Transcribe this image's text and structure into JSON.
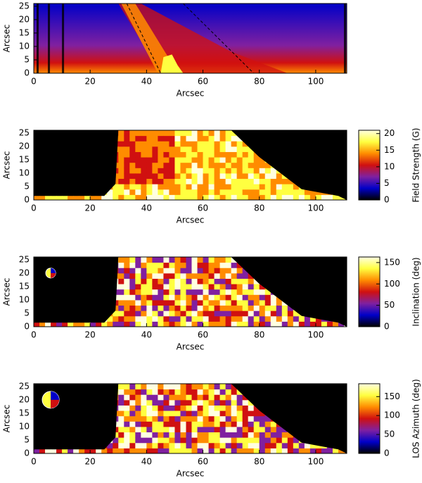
{
  "chart_data": [
    {
      "type": "heatmap",
      "xlabel": "Arcsec",
      "ylabel": "Arcsec",
      "xlim": [
        0,
        111
      ],
      "xticks": [
        0,
        20,
        40,
        60,
        80,
        100
      ],
      "ylim": [
        0,
        26
      ],
      "yticks": [
        0,
        5,
        10,
        15,
        20,
        25
      ],
      "colormap": [
        "#000000",
        "#0000c8",
        "#8020a0",
        "#d01010",
        "#ff8c00",
        "#ffff40",
        "#ffffe0"
      ]
    },
    {
      "type": "heatmap",
      "xlabel": "Arcsec",
      "ylabel": "Arcsec",
      "xlim": [
        0,
        111
      ],
      "xticks": [
        0,
        20,
        40,
        60,
        80,
        100
      ],
      "ylim": [
        0,
        26
      ],
      "yticks": [
        0,
        5,
        10,
        15,
        20,
        25
      ],
      "colormap": [
        "#000000",
        "#0000c8",
        "#8020a0",
        "#d01010",
        "#ff8c00",
        "#ffff40",
        "#ffffe0"
      ],
      "colorbar": {
        "label": "Field Strength (G)",
        "lim": [
          0,
          21
        ],
        "ticks": [
          0,
          5,
          10,
          15,
          20
        ]
      }
    },
    {
      "type": "heatmap",
      "xlabel": "Arcsec",
      "ylabel": "Arcsec",
      "xlim": [
        0,
        111
      ],
      "xticks": [
        0,
        20,
        40,
        60,
        80,
        100
      ],
      "ylim": [
        0,
        26
      ],
      "yticks": [
        0,
        5,
        10,
        15,
        20,
        25
      ],
      "colormap": [
        "#000000",
        "#0000c8",
        "#8020a0",
        "#d01010",
        "#ff8c00",
        "#ffff40",
        "#ffffe0"
      ],
      "colorbar": {
        "label": "Inclination (deg)",
        "lim": [
          0,
          163
        ],
        "ticks": [
          0,
          50,
          100,
          150
        ]
      }
    },
    {
      "type": "heatmap",
      "xlabel": "Arcsec",
      "ylabel": "Arcsec",
      "xlim": [
        0,
        111
      ],
      "xticks": [
        0,
        20,
        40,
        60,
        80,
        100
      ],
      "ylim": [
        0,
        26
      ],
      "yticks": [
        0,
        5,
        10,
        15,
        20,
        25
      ],
      "colormap": [
        "#000000",
        "#0000c8",
        "#8020a0",
        "#d01010",
        "#ff8c00",
        "#ffff40",
        "#ffffe0"
      ],
      "colorbar": {
        "label": "LOS Azimuth (deg)",
        "lim": [
          0,
          184
        ],
        "ticks": [
          0,
          50,
          100,
          150
        ]
      }
    }
  ]
}
